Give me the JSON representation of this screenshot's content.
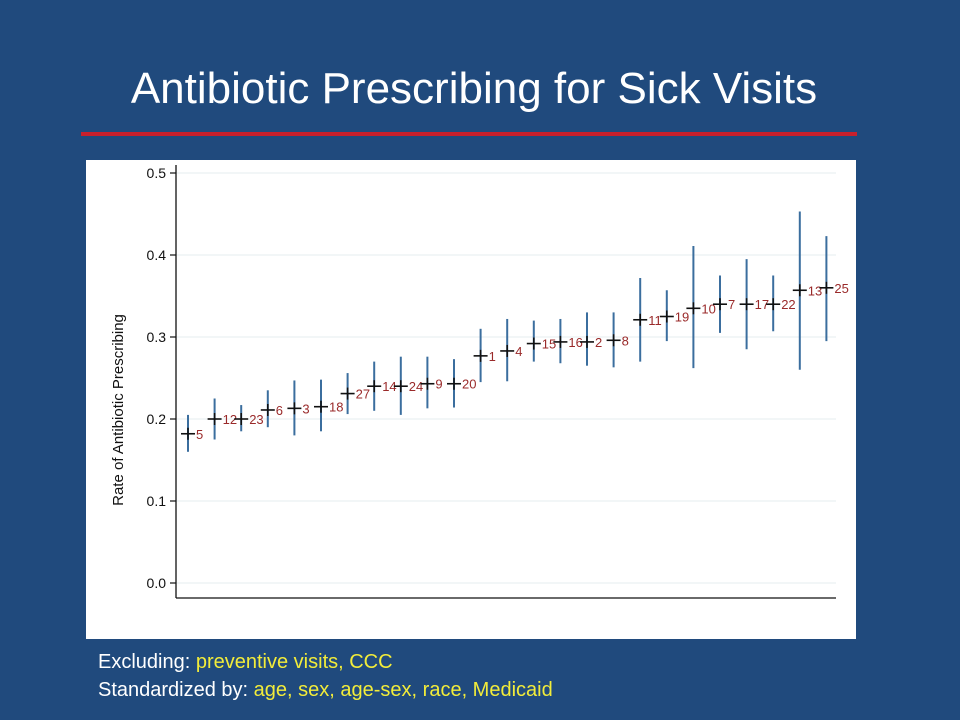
{
  "slide": {
    "title": "Antibiotic Prescribing for Sick Visits"
  },
  "notes": {
    "excluding_label": "Excluding:",
    "excluding_value": "preventive visits, CCC",
    "standardized_label": "Standardized by:",
    "standardized_value": "age, sex, age-sex, race, Medicaid"
  },
  "colors": {
    "background": "#204a7d",
    "title_rule": "#c8202c",
    "note_values": "#f2ec3a",
    "error_bar": "#3b6e9e",
    "point_marker": "#111111",
    "point_label": "#9a2a2a"
  },
  "chart_data": {
    "type": "scatter",
    "title": "",
    "xlabel": "",
    "ylabel": "Rate of Antibiotic Prescribing",
    "ylim": [
      0.0,
      0.5
    ],
    "yticks": [
      "0.0",
      "0.1",
      "0.2",
      "0.3",
      "0.4",
      "0.5"
    ],
    "grid": true,
    "error_bars": true,
    "points": [
      {
        "label": "5",
        "y": 0.182,
        "lo": 0.16,
        "hi": 0.205
      },
      {
        "label": "12",
        "y": 0.2,
        "lo": 0.175,
        "hi": 0.225
      },
      {
        "label": "23",
        "y": 0.2,
        "lo": 0.185,
        "hi": 0.217
      },
      {
        "label": "6",
        "y": 0.211,
        "lo": 0.19,
        "hi": 0.235
      },
      {
        "label": "3",
        "y": 0.213,
        "lo": 0.18,
        "hi": 0.247
      },
      {
        "label": "18",
        "y": 0.215,
        "lo": 0.185,
        "hi": 0.248
      },
      {
        "label": "27",
        "y": 0.231,
        "lo": 0.206,
        "hi": 0.256
      },
      {
        "label": "14",
        "y": 0.24,
        "lo": 0.21,
        "hi": 0.27
      },
      {
        "label": "24",
        "y": 0.24,
        "lo": 0.205,
        "hi": 0.276
      },
      {
        "label": "9",
        "y": 0.243,
        "lo": 0.213,
        "hi": 0.276
      },
      {
        "label": "20",
        "y": 0.243,
        "lo": 0.214,
        "hi": 0.273
      },
      {
        "label": "1",
        "y": 0.277,
        "lo": 0.245,
        "hi": 0.31
      },
      {
        "label": "4",
        "y": 0.283,
        "lo": 0.246,
        "hi": 0.322
      },
      {
        "label": "15",
        "y": 0.292,
        "lo": 0.27,
        "hi": 0.32
      },
      {
        "label": "16",
        "y": 0.294,
        "lo": 0.268,
        "hi": 0.322
      },
      {
        "label": "2",
        "y": 0.294,
        "lo": 0.265,
        "hi": 0.33
      },
      {
        "label": "8",
        "y": 0.296,
        "lo": 0.263,
        "hi": 0.33
      },
      {
        "label": "11",
        "y": 0.321,
        "lo": 0.27,
        "hi": 0.372
      },
      {
        "label": "19",
        "y": 0.325,
        "lo": 0.295,
        "hi": 0.357
      },
      {
        "label": "10",
        "y": 0.335,
        "lo": 0.262,
        "hi": 0.411
      },
      {
        "label": "7",
        "y": 0.34,
        "lo": 0.305,
        "hi": 0.375
      },
      {
        "label": "17",
        "y": 0.34,
        "lo": 0.285,
        "hi": 0.395
      },
      {
        "label": "22",
        "y": 0.34,
        "lo": 0.307,
        "hi": 0.375
      },
      {
        "label": "13",
        "y": 0.357,
        "lo": 0.26,
        "hi": 0.453
      },
      {
        "label": "25",
        "y": 0.36,
        "lo": 0.295,
        "hi": 0.423
      }
    ]
  }
}
